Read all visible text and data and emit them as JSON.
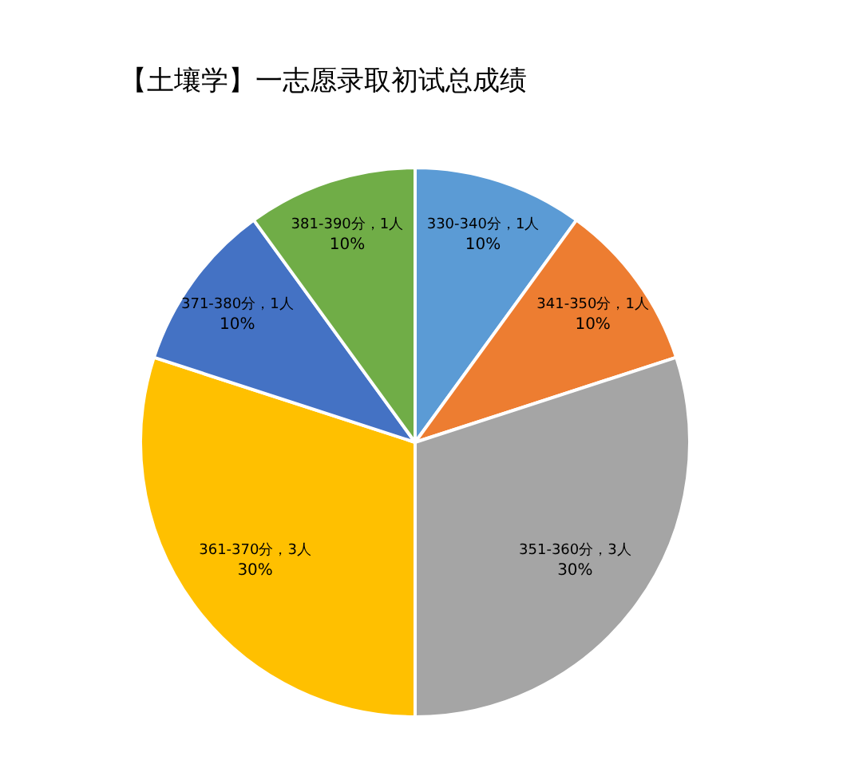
{
  "chart_data": {
    "type": "pie",
    "title": "【土壤学】一志愿录取初试总成绩",
    "categories": [
      "330-340分，1人",
      "341-350分，1人",
      "351-360分，3人",
      "361-370分，3人",
      "371-380分，1人",
      "381-390分，1人"
    ],
    "values": [
      10,
      10,
      30,
      30,
      10,
      10
    ],
    "value_labels": [
      "10%",
      "10%",
      "30%",
      "30%",
      "10%",
      "10%"
    ],
    "colors": [
      "#5b9bd5",
      "#ed7d31",
      "#a5a5a5",
      "#ffc000",
      "#4472c4",
      "#70ad47"
    ],
    "legend": false
  }
}
